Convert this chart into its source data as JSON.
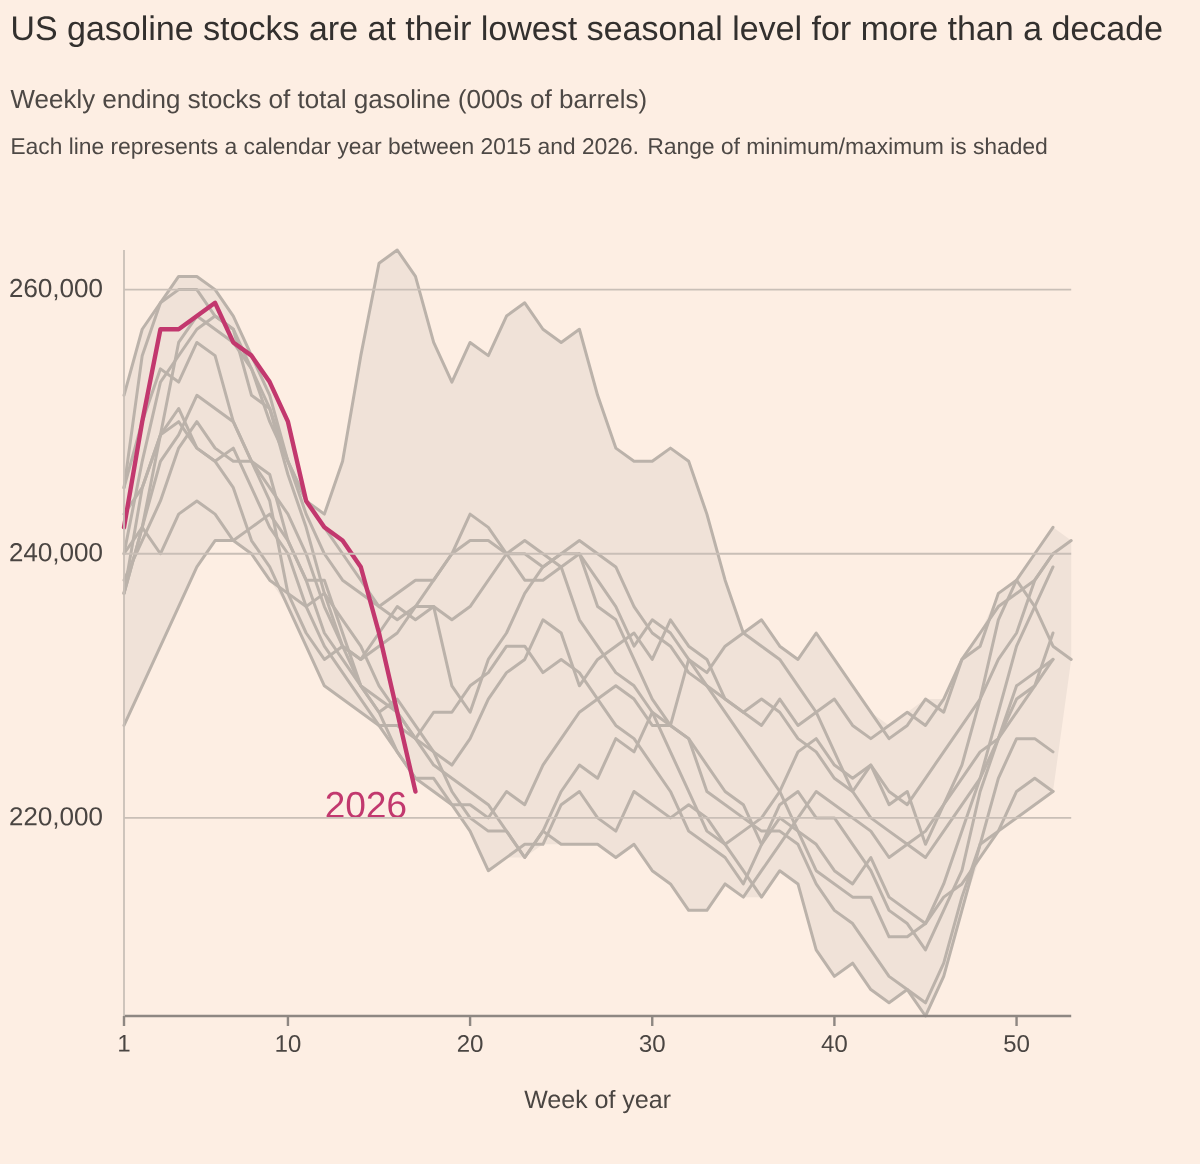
{
  "chart_data": {
    "type": "line",
    "title": "US gasoline stocks are at their lowest seasonal level for more than a decade",
    "subtitle": "Weekly ending stocks of total gasoline (000s of barrels)",
    "annotations": [
      "Each line represents a calendar year between 2015 and 2026. Range of minimum/maximum is shaded"
    ],
    "xlabel": "Week of year",
    "x": [
      1,
      2,
      3,
      4,
      5,
      6,
      7,
      8,
      9,
      10,
      11,
      12,
      13,
      14,
      15,
      16,
      17,
      18,
      19,
      20,
      21,
      22,
      23,
      24,
      25,
      26,
      27,
      28,
      29,
      30,
      31,
      32,
      33,
      34,
      35,
      36,
      37,
      38,
      39,
      40,
      41,
      42,
      43,
      44,
      45,
      46,
      47,
      48,
      49,
      50,
      51,
      52,
      53
    ],
    "xlim": [
      1,
      53
    ],
    "ylim": [
      205000,
      263000
    ],
    "xticks": [
      1,
      10,
      20,
      30,
      40,
      50
    ],
    "yticks": [
      {
        "value": 220000,
        "label": "220,000"
      },
      {
        "value": 240000,
        "label": "240,000"
      },
      {
        "value": 260000,
        "label": "260,000"
      }
    ],
    "grid": "y",
    "series": [
      {
        "color": "#bbb2aa",
        "values": [
          252000,
          257000,
          259000,
          261000,
          261000,
          260000,
          258000,
          255000,
          252000,
          247000,
          244000,
          243000,
          247000,
          255000,
          262000,
          263000,
          261000,
          256000,
          253000,
          256000,
          255000,
          258000,
          259000,
          257000,
          256000,
          257000,
          252000,
          248000,
          247000,
          247000,
          248000,
          247000,
          243000,
          238000,
          234000,
          233000,
          232000,
          230000,
          228000,
          229000,
          227000,
          226000,
          227000,
          228000,
          227000,
          229000,
          232000,
          234000,
          236000,
          237000,
          238000,
          240000,
          241000
        ],
        "upper": [
          252000,
          257000,
          259000,
          261000,
          261000,
          260000,
          258000,
          255000,
          253000,
          250000,
          244000,
          243000,
          247000,
          255000,
          262000,
          263000,
          261000,
          256000,
          253000,
          256000,
          255000,
          258000,
          259000,
          257000,
          256000,
          257000,
          252000,
          248000,
          247000,
          247000,
          248000,
          247000,
          243000,
          238000,
          234000,
          235000,
          233000,
          232000,
          234000,
          232000,
          230000,
          228000,
          227000,
          228000,
          229000,
          229000,
          232000,
          234000,
          237000,
          238000,
          240000,
          242000,
          241000
        ],
        "lower": [
          227000,
          230000,
          233000,
          236000,
          239000,
          241000,
          241000,
          240000,
          238000,
          236000,
          233000,
          230000,
          229000,
          228000,
          227000,
          225000,
          223000,
          222000,
          221000,
          219000,
          216000,
          217000,
          217000,
          218000,
          218000,
          218000,
          218000,
          217000,
          218000,
          216000,
          215000,
          213000,
          213000,
          215000,
          214000,
          214000,
          216000,
          215000,
          210000,
          208000,
          209000,
          207000,
          206000,
          207000,
          205000,
          208000,
          213000,
          217000,
          219000,
          220000,
          221000,
          222000,
          232000
        ]
      },
      {
        "color": "#bbb2aa",
        "values": [
          240000,
          247000,
          253000,
          255000,
          257000,
          258000,
          257000,
          254000,
          250000,
          247000,
          244000,
          242000,
          240000,
          238000,
          236000,
          237000,
          238000,
          238000,
          240000,
          241000,
          241000,
          240000,
          240000,
          239000,
          240000,
          241000,
          240000,
          239000,
          236000,
          234000,
          233000,
          231000,
          230000,
          229000,
          228000,
          229000,
          228000,
          226000,
          225000,
          223000,
          222000,
          224000,
          222000,
          221000,
          223000,
          225000,
          227000,
          229000,
          232000,
          234000,
          238000,
          240000,
          null
        ]
      },
      {
        "color": "#bbb2aa",
        "values": [
          237000,
          242000,
          249000,
          256000,
          258000,
          257000,
          256000,
          254000,
          251000,
          247000,
          243000,
          240000,
          238000,
          237000,
          236000,
          235000,
          236000,
          238000,
          240000,
          243000,
          242000,
          240000,
          241000,
          240000,
          239000,
          235000,
          233000,
          231000,
          230000,
          228000,
          227000,
          232000,
          230000,
          228000,
          226000,
          224000,
          222000,
          219000,
          216000,
          215000,
          214000,
          214000,
          211000,
          211000,
          212000,
          215000,
          219000,
          223000,
          228000,
          233000,
          236000,
          239000,
          null
        ]
      },
      {
        "color": "#bbb2aa",
        "values": [
          237000,
          242000,
          247000,
          249000,
          252000,
          251000,
          250000,
          247000,
          245000,
          243000,
          240000,
          236000,
          233000,
          232000,
          233000,
          234000,
          236000,
          236000,
          235000,
          236000,
          238000,
          240000,
          238000,
          238000,
          239000,
          240000,
          238000,
          236000,
          233000,
          235000,
          234000,
          232000,
          231000,
          233000,
          234000,
          235000,
          233000,
          232000,
          234000,
          232000,
          230000,
          228000,
          226000,
          227000,
          229000,
          228000,
          232000,
          233000,
          237000,
          238000,
          236000,
          233000,
          232000
        ]
      },
      {
        "color": "#bbb2aa",
        "values": [
          245000,
          255000,
          259000,
          260000,
          260000,
          258000,
          257000,
          252000,
          251000,
          246000,
          242000,
          237000,
          233000,
          230000,
          228000,
          229000,
          227000,
          225000,
          224000,
          226000,
          229000,
          231000,
          232000,
          235000,
          234000,
          230000,
          232000,
          233000,
          234000,
          232000,
          235000,
          233000,
          232000,
          229000,
          228000,
          227000,
          229000,
          227000,
          228000,
          225000,
          222000,
          220000,
          219000,
          218000,
          219000,
          221000,
          224000,
          229000,
          235000,
          238000,
          240000,
          242000,
          null
        ]
      },
      {
        "color": "#bbb2aa",
        "values": [
          245000,
          250000,
          254000,
          253000,
          256000,
          255000,
          250000,
          247000,
          244000,
          237000,
          234000,
          232000,
          233000,
          232000,
          234000,
          236000,
          235000,
          236000,
          230000,
          228000,
          232000,
          234000,
          237000,
          239000,
          240000,
          240000,
          236000,
          235000,
          232000,
          229000,
          227000,
          226000,
          224000,
          222000,
          221000,
          218000,
          220000,
          219000,
          218000,
          216000,
          215000,
          217000,
          214000,
          213000,
          212000,
          214000,
          215000,
          217000,
          219000,
          222000,
          223000,
          222000,
          null
        ]
      },
      {
        "color": "#bbb2aa",
        "values": [
          238000,
          241000,
          244000,
          248000,
          250000,
          248000,
          247000,
          247000,
          246000,
          241000,
          238000,
          238000,
          234000,
          230000,
          229000,
          228000,
          226000,
          225000,
          222000,
          220000,
          219000,
          219000,
          217000,
          219000,
          222000,
          224000,
          223000,
          226000,
          225000,
          228000,
          225000,
          222000,
          219000,
          218000,
          216000,
          214000,
          216000,
          215000,
          210000,
          208000,
          209000,
          207000,
          206000,
          207000,
          206000,
          209000,
          214000,
          218000,
          223000,
          226000,
          226000,
          225000,
          null
        ]
      },
      {
        "color": "#bbb2aa",
        "values": [
          227000,
          230000,
          233000,
          236000,
          239000,
          241000,
          241000,
          242000,
          243000,
          241000,
          238000,
          234000,
          232000,
          230000,
          228000,
          225000,
          223000,
          222000,
          221000,
          219000,
          216000,
          217000,
          218000,
          218000,
          221000,
          222000,
          220000,
          219000,
          222000,
          221000,
          220000,
          221000,
          220000,
          218000,
          219000,
          220000,
          222000,
          225000,
          226000,
          224000,
          223000,
          224000,
          221000,
          222000,
          218000,
          221000,
          223000,
          225000,
          226000,
          229000,
          230000,
          232000,
          null
        ]
      },
      {
        "color": "#bbb2aa",
        "values": [
          237000,
          245000,
          249000,
          251000,
          248000,
          247000,
          245000,
          241000,
          239000,
          236000,
          233000,
          230000,
          229000,
          228000,
          227000,
          227000,
          226000,
          228000,
          228000,
          230000,
          231000,
          233000,
          233000,
          231000,
          232000,
          231000,
          229000,
          227000,
          226000,
          224000,
          222000,
          219000,
          218000,
          217000,
          215000,
          218000,
          221000,
          222000,
          220000,
          220000,
          218000,
          216000,
          213000,
          212000,
          210000,
          213000,
          216000,
          222000,
          226000,
          230000,
          231000,
          232000,
          null
        ]
      },
      {
        "color": "#bbb2aa",
        "values": [
          243000,
          245000,
          249000,
          250000,
          248000,
          247000,
          248000,
          245000,
          242000,
          240000,
          236000,
          233000,
          231000,
          229000,
          227000,
          225000,
          223000,
          223000,
          221000,
          221000,
          220000,
          222000,
          221000,
          224000,
          226000,
          228000,
          229000,
          230000,
          229000,
          227000,
          227000,
          226000,
          222000,
          221000,
          220000,
          219000,
          219000,
          218000,
          215000,
          213000,
          212000,
          210000,
          208000,
          207000,
          205000,
          208000,
          213000,
          218000,
          219000,
          220000,
          221000,
          222000,
          null
        ]
      },
      {
        "color": "#bbb2aa",
        "values": [
          240000,
          242000,
          240000,
          243000,
          244000,
          243000,
          241000,
          240000,
          238000,
          237000,
          236000,
          237000,
          235000,
          233000,
          230000,
          228000,
          226000,
          224000,
          223000,
          222000,
          221000,
          219000,
          217000,
          219000,
          218000,
          218000,
          218000,
          217000,
          218000,
          216000,
          215000,
          213000,
          213000,
          215000,
          214000,
          216000,
          218000,
          220000,
          222000,
          221000,
          220000,
          219000,
          217000,
          218000,
          217000,
          219000,
          221000,
          223000,
          226000,
          228000,
          230000,
          234000,
          null
        ]
      },
      {
        "name": "2026",
        "color": "#c2386e",
        "x": [
          1,
          2,
          3,
          4,
          5,
          6,
          7,
          8,
          9,
          10,
          11,
          12,
          13,
          14,
          15,
          16,
          17
        ],
        "values": [
          242000,
          250000,
          257000,
          257000,
          258000,
          259000,
          256000,
          255000,
          253000,
          250000,
          244000,
          242000,
          241000,
          239000,
          234000,
          228000,
          222000
        ]
      }
    ]
  }
}
